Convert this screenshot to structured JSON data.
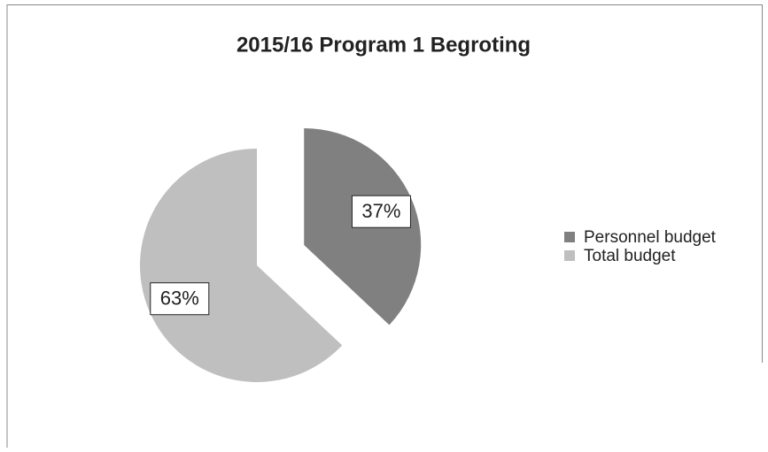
{
  "chart_data": {
    "type": "pie",
    "title": "2015/16 Program 1 Begroting",
    "categories": [
      "Personnel budget",
      "Total budget"
    ],
    "values": [
      37,
      63
    ],
    "value_labels": [
      "37%",
      "63%"
    ],
    "colors": [
      "#808080",
      "#bfbfbf"
    ],
    "legend": "right"
  }
}
